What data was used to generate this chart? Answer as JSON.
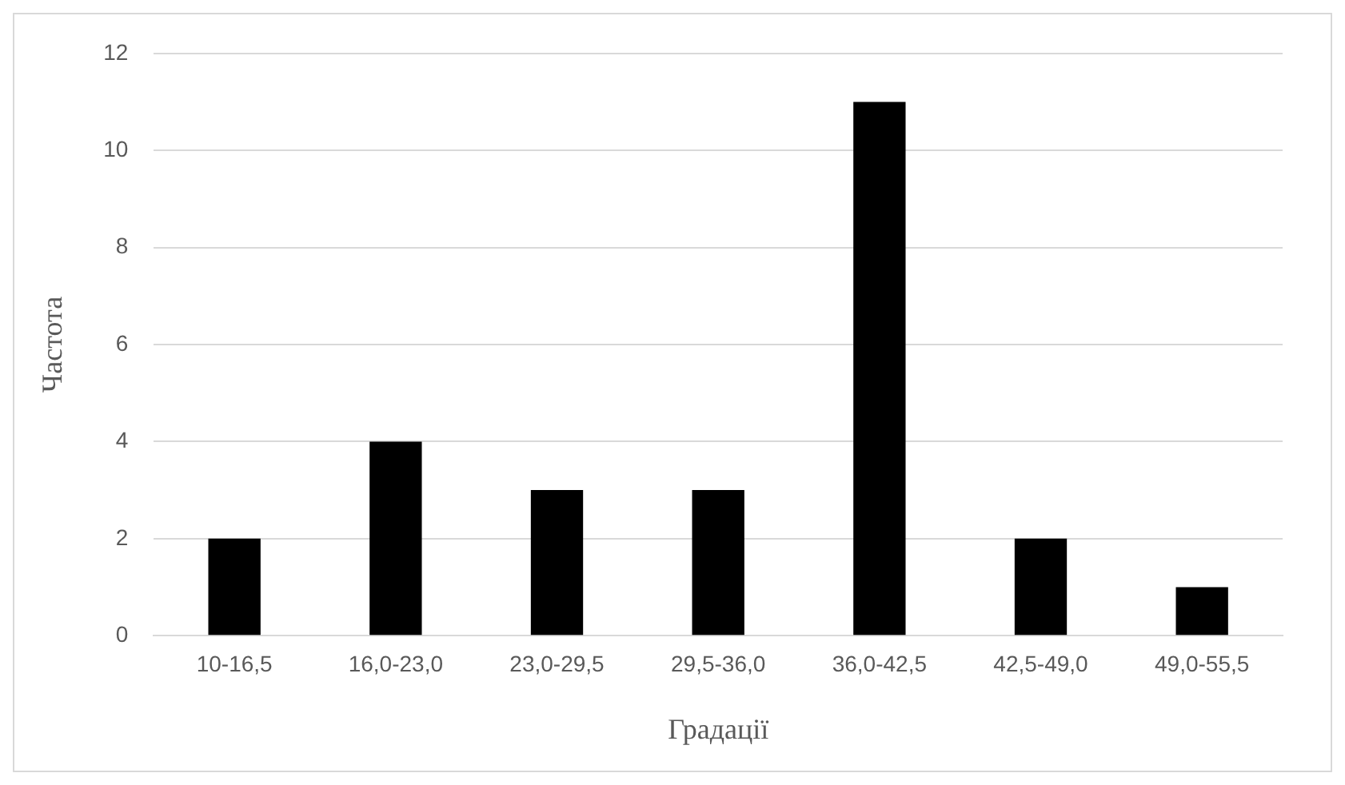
{
  "chart_data": {
    "type": "bar",
    "xlabel": "Градації",
    "ylabel": "Частота",
    "categories": [
      "10-16,5",
      "16,0-23,0",
      "23,0-29,5",
      "29,5-36,0",
      "36,0-42,5",
      "42,5-49,0",
      "49,0-55,5"
    ],
    "values": [
      2,
      4,
      3,
      3,
      11,
      2,
      1
    ],
    "color": "#000000",
    "ylim": [
      0,
      12
    ],
    "yticks": [
      0,
      2,
      4,
      6,
      8,
      10,
      12
    ],
    "grid": "y",
    "legend": false
  }
}
